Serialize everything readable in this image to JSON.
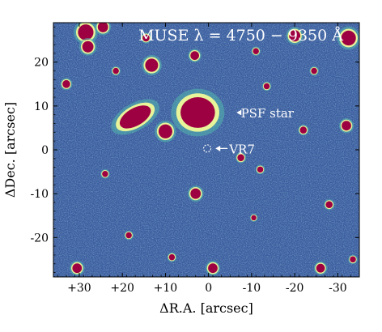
{
  "chart_data": {
    "type": "heatmap",
    "title": "MUSE λ = 4750 − 9350 Å",
    "xlabel": "ΔR.A. [arcsec]",
    "ylabel": "ΔDec. [arcsec]",
    "xlim": [
      36,
      -35
    ],
    "ylim": [
      -29,
      29
    ],
    "x_ticks": [
      {
        "value": 30,
        "label": "+30"
      },
      {
        "value": 20,
        "label": "+20"
      },
      {
        "value": 10,
        "label": "+10"
      },
      {
        "value": 0,
        "label": "0"
      },
      {
        "value": -10,
        "label": "-10"
      },
      {
        "value": -20,
        "label": "-20"
      },
      {
        "value": -30,
        "label": "-30"
      }
    ],
    "y_ticks": [
      {
        "value": 20,
        "label": "20"
      },
      {
        "value": 10,
        "label": "10"
      },
      {
        "value": 0,
        "label": "0"
      },
      {
        "value": -10,
        "label": "-10"
      },
      {
        "value": -20,
        "label": "-20"
      }
    ],
    "grid": false,
    "colormap": {
      "background": "#3b5b9e",
      "low": "#3f63a7",
      "mid": "#40a9b4",
      "high": "#eef7a4",
      "saturated": "#9e0142"
    },
    "annotations": [
      {
        "text": "PSF star",
        "x": -7.5,
        "y": 8.5,
        "arrow_to": [
          -6.5,
          8.5
        ]
      },
      {
        "text": "VR7",
        "x": -4.8,
        "y": 0.3,
        "arrow_to": [
          -1.6,
          0.3
        ],
        "marker": "dashed-circle",
        "marker_x": 0.3,
        "marker_y": 0.3
      }
    ],
    "sources": [
      {
        "x": 2.5,
        "y": 8.5,
        "r": 4.0,
        "ry": 3.5
      },
      {
        "x": 17.0,
        "y": 7.5,
        "r": 4.0,
        "ry": 2.0,
        "angle": -30
      },
      {
        "x": 10.0,
        "y": 4.2,
        "r": 1.6
      },
      {
        "x": 28.5,
        "y": 26.8,
        "r": 1.8
      },
      {
        "x": 28.0,
        "y": 23.5,
        "r": 1.3
      },
      {
        "x": 13.2,
        "y": 19.3,
        "r": 1.5
      },
      {
        "x": -20.0,
        "y": 26.0,
        "r": 1.3
      },
      {
        "x": -32.5,
        "y": 25.5,
        "r": 1.7
      },
      {
        "x": 24.5,
        "y": 28.0,
        "r": 1.2
      },
      {
        "x": 3.2,
        "y": 21.5,
        "r": 1.0
      },
      {
        "x": 14.5,
        "y": 25.5,
        "r": 0.8
      },
      {
        "x": -11.0,
        "y": 22.5,
        "r": 0.7
      },
      {
        "x": -24.5,
        "y": 18.0,
        "r": 0.7
      },
      {
        "x": 33.0,
        "y": 15.0,
        "r": 0.9
      },
      {
        "x": -22.0,
        "y": 4.5,
        "r": 0.8
      },
      {
        "x": -32.0,
        "y": 5.5,
        "r": 1.1
      },
      {
        "x": -7.5,
        "y": -1.8,
        "r": 0.8
      },
      {
        "x": -12.0,
        "y": -4.5,
        "r": 0.7
      },
      {
        "x": 3.0,
        "y": -10.0,
        "r": 1.2
      },
      {
        "x": -1.0,
        "y": -27.0,
        "r": 1.1
      },
      {
        "x": -26.0,
        "y": -27.0,
        "r": 1.0
      },
      {
        "x": 30.5,
        "y": -27.0,
        "r": 1.1
      },
      {
        "x": -28.0,
        "y": -12.5,
        "r": 0.8
      },
      {
        "x": 8.5,
        "y": -24.5,
        "r": 0.7
      },
      {
        "x": 18.5,
        "y": -19.5,
        "r": 0.7
      },
      {
        "x": -10.5,
        "y": -15.5,
        "r": 0.6
      },
      {
        "x": 24.0,
        "y": -5.5,
        "r": 0.7
      },
      {
        "x": -33.5,
        "y": -25.0,
        "r": 0.7
      },
      {
        "x": 21.5,
        "y": 18.0,
        "r": 0.7
      },
      {
        "x": -13.5,
        "y": 14.5,
        "r": 0.7
      }
    ]
  }
}
